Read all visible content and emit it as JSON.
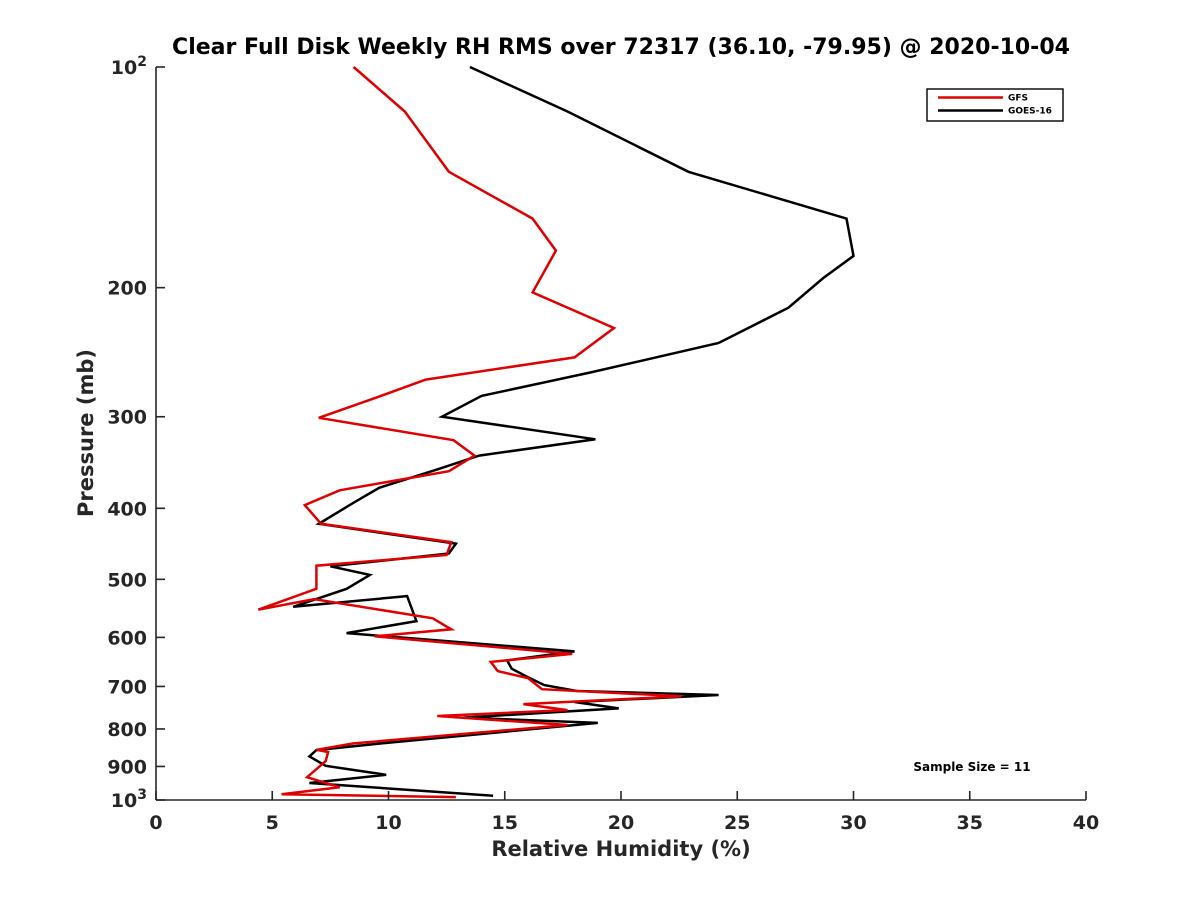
{
  "chart_data": {
    "type": "line",
    "title": "Clear Full Disk Weekly RH RMS over 72317 (36.10, -79.95) @ 2020-10-04",
    "xlabel": "Relative Humidity (%)",
    "ylabel": "Pressure (mb)",
    "xlim": [
      0,
      40
    ],
    "ylim": [
      100,
      1000
    ],
    "y_scale": "log",
    "y_reversed": true,
    "x_ticks": [
      "0",
      "5",
      "10",
      "15",
      "20",
      "25",
      "30",
      "35",
      "40"
    ],
    "y_ticks": [
      {
        "value": 100,
        "base": "10",
        "exp": "2"
      },
      {
        "value": 200,
        "label": "200"
      },
      {
        "value": 300,
        "label": "300"
      },
      {
        "value": 400,
        "label": "400"
      },
      {
        "value": 500,
        "label": "500"
      },
      {
        "value": 600,
        "label": "600"
      },
      {
        "value": 700,
        "label": "700"
      },
      {
        "value": 800,
        "label": "800"
      },
      {
        "value": 900,
        "label": "900"
      },
      {
        "value": 1000,
        "base": "10",
        "exp": "3"
      }
    ],
    "legend_position": "top-right",
    "grid": false,
    "annotation": "Sample Size = 11",
    "series": [
      {
        "name": "GFS",
        "color": "#dd0000",
        "x": [
          8.5,
          10.7,
          12.6,
          16.2,
          17.2,
          16.2,
          19.7,
          18.0,
          11.6,
          9.4,
          7.0,
          12.8,
          13.7,
          12.6,
          7.9,
          6.4,
          7.1,
          12.7,
          12.5,
          6.9,
          6.9,
          6.9,
          4.4,
          6.8,
          11.9,
          12.7,
          9.4,
          17.9,
          14.4,
          14.7,
          16.0,
          16.6,
          22.6,
          15.8,
          17.7,
          12.1,
          17.7,
          8.5,
          6.9,
          7.4,
          7.3,
          6.5,
          7.9,
          5.4,
          12.9
        ],
        "y": [
          100,
          115,
          139,
          161,
          178,
          203,
          227,
          249,
          267,
          283,
          301,
          323,
          339,
          356,
          378,
          396,
          420,
          445,
          463,
          479,
          496,
          515,
          550,
          532,
          565,
          585,
          598,
          632,
          648,
          667,
          682,
          706,
          722,
          740,
          754,
          768,
          790,
          837,
          854,
          860,
          885,
          931,
          961,
          982,
          991
        ]
      },
      {
        "name": "GOES-16",
        "color": "#000000",
        "x": [
          13.5,
          17.7,
          22.9,
          29.7,
          30.0,
          28.7,
          27.2,
          24.2,
          18.7,
          14.0,
          12.3,
          18.9,
          13.9,
          12.1,
          9.6,
          8.5,
          7.0,
          12.9,
          12.6,
          7.5,
          9.2,
          8.2,
          5.9,
          10.8,
          11.2,
          8.2,
          18.0,
          15.1,
          15.3,
          16.0,
          16.7,
          18.1,
          24.2,
          18.0,
          19.9,
          13.2,
          19.0,
          9.7,
          6.9,
          6.6,
          7.3,
          9.9,
          6.6,
          14.5
        ],
        "y": [
          100,
          115,
          139,
          161,
          181,
          194,
          213,
          238,
          261,
          281,
          300,
          322,
          339,
          354,
          375,
          393,
          420,
          447,
          461,
          480,
          493,
          515,
          545,
          527,
          570,
          592,
          627,
          645,
          662,
          680,
          697,
          710,
          719,
          735,
          750,
          772,
          785,
          837,
          855,
          872,
          898,
          924,
          948,
          987
        ]
      }
    ]
  }
}
